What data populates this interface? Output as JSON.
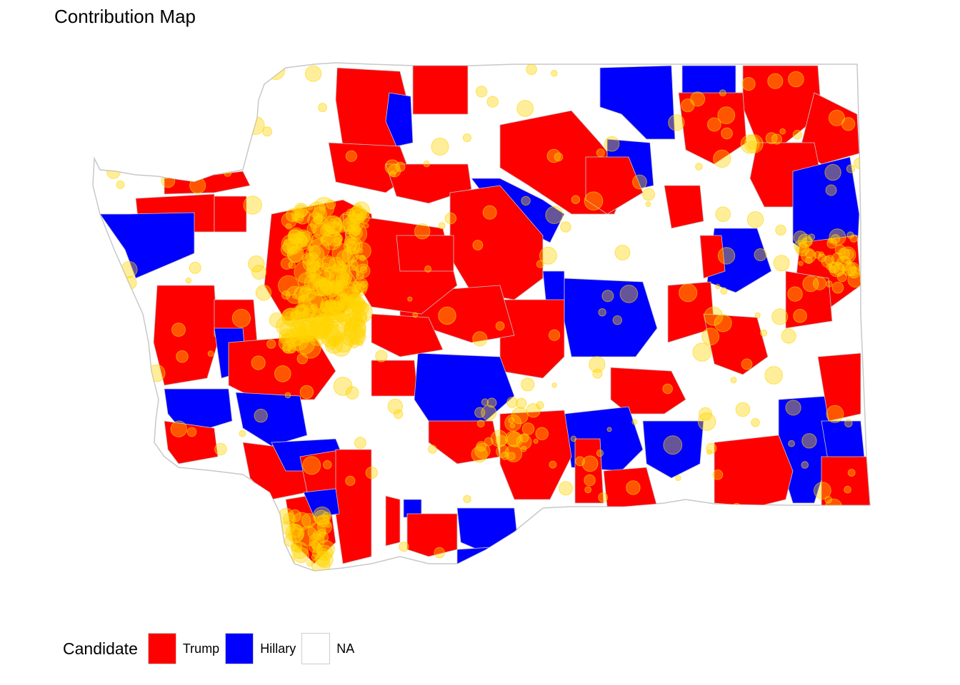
{
  "title": "Contribution Map",
  "legend": {
    "title": "Candidate",
    "items": [
      {
        "label": "Trump",
        "color": "#ff0000"
      },
      {
        "label": "Hillary",
        "color": "#0000ff"
      },
      {
        "label": "NA",
        "color": "#ffffff"
      }
    ]
  },
  "map": {
    "region": "Washington State zip-code areas",
    "fill_colors": {
      "trump": "#ff0000",
      "hillary": "#0000ff",
      "na": "#ffffff"
    },
    "border_color": "#c8c8c8",
    "contribution_marker_color": "#ffd400",
    "contribution_marker_opacity": 0.4
  }
}
